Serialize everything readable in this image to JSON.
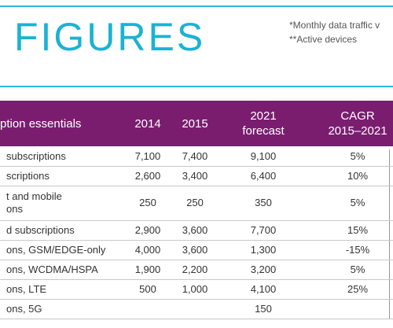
{
  "header": {
    "title": "FIGURES",
    "notes": [
      "*Monthly data traffic v",
      "**Active devices"
    ]
  },
  "table": {
    "columns": [
      [
        "ption essentials"
      ],
      [
        "2014"
      ],
      [
        "2015"
      ],
      [
        "2021",
        "forecast"
      ],
      [
        "CAGR",
        "2015–2021"
      ]
    ],
    "rows": [
      [
        [
          "subscriptions"
        ],
        "7,100",
        "7,400",
        "9,100",
        "5%"
      ],
      [
        [
          "scriptions"
        ],
        "2,600",
        "3,400",
        "6,400",
        "10%"
      ],
      [
        [
          "t and mobile",
          "ons"
        ],
        "250",
        "250",
        "350",
        "5%"
      ],
      [
        [
          "d subscriptions"
        ],
        "2,900",
        "3,600",
        "7,700",
        "15%"
      ],
      [
        [
          "ons, GSM/EDGE-only"
        ],
        "4,000",
        "3,600",
        "1,300",
        "-15%"
      ],
      [
        [
          "ons, WCDMA/HSPA"
        ],
        "1,900",
        "2,200",
        "3,200",
        "5%"
      ],
      [
        [
          "ons, LTE"
        ],
        "500",
        "1,000",
        "4,100",
        "25%"
      ],
      [
        [
          "ons, 5G"
        ],
        null,
        null,
        "150",
        null
      ]
    ]
  }
}
